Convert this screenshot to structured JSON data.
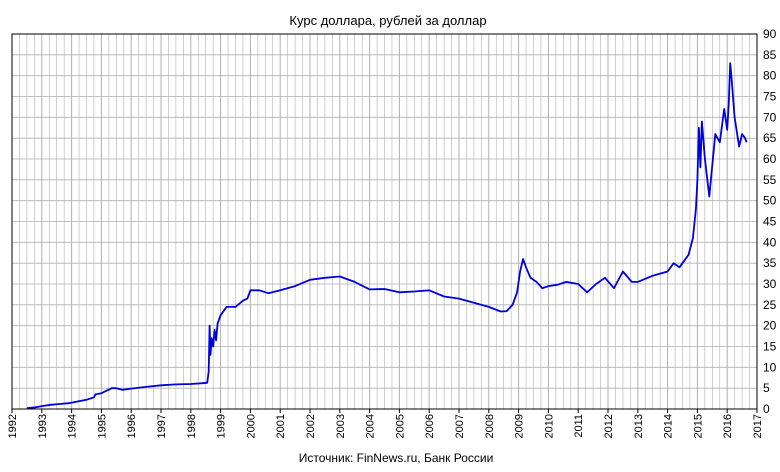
{
  "chart_data": {
    "type": "line",
    "title": "Курс доллара,  рублей  за доллар",
    "source": "Источник: FinNews.ru, Банк России",
    "xlabel": "",
    "ylabel": "",
    "xlim": [
      1992,
      2017
    ],
    "ylim": [
      0,
      90
    ],
    "y_ticks": [
      0,
      5,
      10,
      15,
      20,
      25,
      30,
      35,
      40,
      45,
      50,
      55,
      60,
      65,
      70,
      75,
      80,
      85,
      90
    ],
    "x_ticks": [
      "1992",
      "1993",
      "1994",
      "1995",
      "1996",
      "1997",
      "1998",
      "1999",
      "2000",
      "2001",
      "2002",
      "2003",
      "2004",
      "2005",
      "2006",
      "2007",
      "2008",
      "2009",
      "2010",
      "2011",
      "2012",
      "2013",
      "2014",
      "2015",
      "2016",
      "2017"
    ],
    "y_axis_position": "right",
    "grid": true,
    "legend": "none",
    "colors": {
      "line": "#0000dd",
      "grid": "#b0b0b0",
      "frame": "#000000"
    },
    "series": [
      {
        "x": [
          1992.5,
          1992.8,
          1993.0,
          1993.3,
          1993.6,
          1993.9,
          1994.2,
          1994.5,
          1994.75,
          1994.8,
          1995.0,
          1995.2,
          1995.35,
          1995.5,
          1995.7,
          1996.0,
          1996.5,
          1997.0,
          1997.5,
          1998.0,
          1998.4,
          1998.55,
          1998.6,
          1998.63,
          1998.66,
          1998.7,
          1998.75,
          1998.8,
          1998.85,
          1998.9,
          1999.0,
          1999.2,
          1999.5,
          1999.75,
          1999.9,
          2000.0,
          2000.3,
          2000.6,
          2001.0,
          2001.5,
          2002.0,
          2002.5,
          2003.0,
          2003.5,
          2004.0,
          2004.5,
          2005.0,
          2005.5,
          2006.0,
          2006.5,
          2007.0,
          2007.5,
          2008.0,
          2008.4,
          2008.6,
          2008.8,
          2008.95,
          2009.05,
          2009.15,
          2009.25,
          2009.4,
          2009.6,
          2009.8,
          2010.0,
          2010.3,
          2010.6,
          2011.0,
          2011.3,
          2011.6,
          2011.9,
          2012.2,
          2012.5,
          2012.8,
          2013.0,
          2013.5,
          2014.0,
          2014.2,
          2014.4,
          2014.7,
          2014.85,
          2014.95,
          2015.0,
          2015.05,
          2015.1,
          2015.15,
          2015.25,
          2015.4,
          2015.6,
          2015.75,
          2015.9,
          2016.0,
          2016.05,
          2016.1,
          2016.15,
          2016.25,
          2016.4,
          2016.5,
          2016.6,
          2016.65
        ],
        "values": [
          0.2,
          0.4,
          0.7,
          1.0,
          1.2,
          1.4,
          1.8,
          2.2,
          2.8,
          3.5,
          3.8,
          4.5,
          5.0,
          5.0,
          4.6,
          4.9,
          5.3,
          5.7,
          5.9,
          6.0,
          6.2,
          6.3,
          9.0,
          20.0,
          13.0,
          17.0,
          15.0,
          19.0,
          16.5,
          20.5,
          22.5,
          24.5,
          24.5,
          26.0,
          26.5,
          28.5,
          28.5,
          27.8,
          28.5,
          29.5,
          31.0,
          31.5,
          31.8,
          30.5,
          28.7,
          28.8,
          28.0,
          28.2,
          28.5,
          27.0,
          26.5,
          25.5,
          24.5,
          23.4,
          23.5,
          25.0,
          28.0,
          33.0,
          36.0,
          34.0,
          31.5,
          30.5,
          29.0,
          29.5,
          29.8,
          30.5,
          30.0,
          28.0,
          30.0,
          31.5,
          29.0,
          33.0,
          30.5,
          30.5,
          32.0,
          33.0,
          35.0,
          34.0,
          37.0,
          41.0,
          48.0,
          55.0,
          67.5,
          58.0,
          69.0,
          60.0,
          51.0,
          66.0,
          64.0,
          72.0,
          67.0,
          73.0,
          83.0,
          79.0,
          70.0,
          63.0,
          66.0,
          65.0,
          64.0
        ]
      }
    ]
  }
}
